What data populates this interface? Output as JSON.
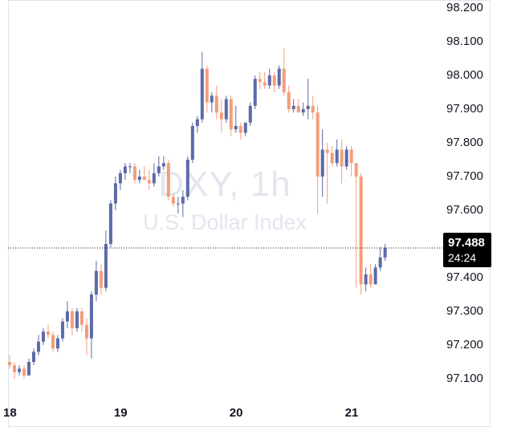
{
  "watermark": {
    "title": "DXY, 1h",
    "subtitle": "U.S. Dollar Index"
  },
  "current": {
    "price": "97.488",
    "countdown": "24:24"
  },
  "colors": {
    "up": "#5b6aa8",
    "down": "#f49d7a",
    "grid_frame": "#e0e3eb",
    "text": "#131722"
  },
  "chart_data": {
    "type": "candlestick",
    "symbol": "DXY",
    "interval": "1h",
    "ylim": [
      97.02,
      98.222
    ],
    "y_ticks": [
      "98.200",
      "98.100",
      "98.000",
      "97.900",
      "97.800",
      "97.700",
      "97.600",
      "97.400",
      "97.300",
      "97.200",
      "97.100"
    ],
    "x_ticks": [
      {
        "label": "18",
        "index": 0
      },
      {
        "label": "19",
        "index": 23
      },
      {
        "label": "20",
        "index": 47
      },
      {
        "label": "21",
        "index": 71
      }
    ],
    "last_price": 97.488,
    "candles": [
      [
        97.15,
        97.17,
        97.13,
        97.14
      ],
      [
        97.14,
        97.15,
        97.1,
        97.12
      ],
      [
        97.12,
        97.14,
        97.11,
        97.13
      ],
      [
        97.13,
        97.14,
        97.1,
        97.11
      ],
      [
        97.11,
        97.16,
        97.11,
        97.15
      ],
      [
        97.15,
        97.19,
        97.14,
        97.18
      ],
      [
        97.18,
        97.23,
        97.17,
        97.21
      ],
      [
        97.21,
        97.25,
        97.2,
        97.24
      ],
      [
        97.24,
        97.26,
        97.22,
        97.23
      ],
      [
        97.23,
        97.24,
        97.18,
        97.19
      ],
      [
        97.19,
        97.23,
        97.18,
        97.22
      ],
      [
        97.22,
        97.28,
        97.21,
        97.27
      ],
      [
        97.27,
        97.33,
        97.25,
        97.3
      ],
      [
        97.3,
        97.31,
        97.23,
        97.25
      ],
      [
        97.25,
        97.31,
        97.24,
        97.3
      ],
      [
        97.3,
        97.31,
        97.24,
        97.26
      ],
      [
        97.26,
        97.28,
        97.17,
        97.22
      ],
      [
        97.22,
        97.36,
        97.16,
        97.35
      ],
      [
        97.35,
        97.45,
        97.33,
        97.42
      ],
      [
        97.42,
        97.44,
        97.35,
        97.37
      ],
      [
        97.37,
        97.54,
        97.36,
        97.5
      ],
      [
        97.5,
        97.63,
        97.49,
        97.62
      ],
      [
        97.62,
        97.7,
        97.6,
        97.68
      ],
      [
        97.68,
        97.72,
        97.66,
        97.71
      ],
      [
        97.71,
        97.74,
        97.69,
        97.73
      ],
      [
        97.73,
        97.74,
        97.71,
        97.73
      ],
      [
        97.73,
        97.74,
        97.68,
        97.69
      ],
      [
        97.69,
        97.72,
        97.68,
        97.7
      ],
      [
        97.7,
        97.73,
        97.69,
        97.69
      ],
      [
        97.69,
        97.72,
        97.66,
        97.68
      ],
      [
        97.68,
        97.74,
        97.67,
        97.71
      ],
      [
        97.71,
        97.76,
        97.7,
        97.73
      ],
      [
        97.73,
        97.76,
        97.72,
        97.74
      ],
      [
        97.74,
        97.75,
        97.63,
        97.64
      ],
      [
        97.64,
        97.65,
        97.61,
        97.62
      ],
      [
        97.62,
        97.64,
        97.59,
        97.62
      ],
      [
        97.62,
        97.66,
        97.58,
        97.64
      ],
      [
        97.64,
        97.76,
        97.63,
        97.75
      ],
      [
        97.75,
        97.86,
        97.74,
        97.85
      ],
      [
        97.85,
        97.88,
        97.83,
        97.87
      ],
      [
        97.87,
        98.07,
        97.86,
        98.02
      ],
      [
        98.02,
        98.03,
        97.89,
        97.92
      ],
      [
        97.92,
        97.95,
        97.89,
        97.94
      ],
      [
        97.94,
        97.97,
        97.87,
        97.89
      ],
      [
        97.89,
        97.93,
        97.83,
        97.87
      ],
      [
        97.87,
        97.94,
        97.86,
        97.93
      ],
      [
        97.93,
        97.94,
        97.82,
        97.84
      ],
      [
        97.84,
        97.91,
        97.83,
        97.85
      ],
      [
        97.85,
        97.86,
        97.81,
        97.83
      ],
      [
        97.83,
        97.86,
        97.82,
        97.86
      ],
      [
        97.86,
        97.92,
        97.85,
        97.91
      ],
      [
        97.91,
        98.0,
        97.9,
        97.99
      ],
      [
        97.99,
        98.01,
        97.96,
        97.98
      ],
      [
        97.98,
        98.01,
        97.96,
        97.97
      ],
      [
        97.97,
        98.02,
        97.96,
        98.0
      ],
      [
        98.0,
        98.01,
        97.95,
        97.97
      ],
      [
        97.97,
        98.03,
        97.96,
        98.02
      ],
      [
        98.02,
        98.08,
        97.94,
        97.95
      ],
      [
        97.95,
        97.97,
        97.89,
        97.9
      ],
      [
        97.9,
        97.93,
        97.89,
        97.91
      ],
      [
        97.91,
        97.93,
        97.89,
        97.89
      ],
      [
        97.89,
        97.92,
        97.88,
        97.9
      ],
      [
        97.9,
        97.99,
        97.87,
        97.91
      ],
      [
        97.91,
        97.94,
        97.87,
        97.89
      ],
      [
        97.89,
        97.91,
        97.59,
        97.7
      ],
      [
        97.7,
        97.84,
        97.64,
        97.78
      ],
      [
        97.78,
        97.8,
        97.62,
        97.77
      ],
      [
        97.77,
        97.79,
        97.73,
        97.74
      ],
      [
        97.74,
        97.81,
        97.73,
        97.78
      ],
      [
        97.78,
        97.81,
        97.68,
        97.73
      ],
      [
        97.73,
        97.79,
        97.72,
        97.78
      ],
      [
        97.78,
        97.79,
        97.7,
        97.74
      ],
      [
        97.74,
        97.74,
        97.37,
        97.7
      ],
      [
        97.7,
        97.71,
        97.35,
        97.38
      ],
      [
        97.38,
        97.43,
        97.36,
        97.41
      ],
      [
        97.41,
        97.44,
        97.37,
        97.38
      ],
      [
        97.38,
        97.44,
        97.38,
        97.43
      ],
      [
        97.43,
        97.49,
        97.42,
        97.46
      ],
      [
        97.46,
        97.5,
        97.45,
        97.488
      ]
    ]
  }
}
